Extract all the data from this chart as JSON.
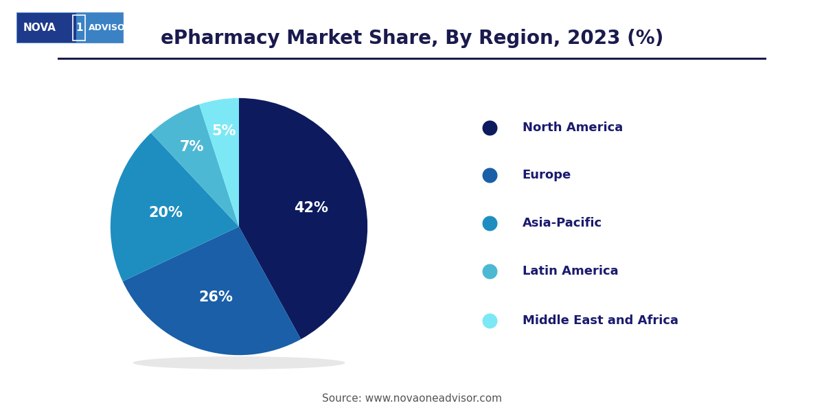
{
  "title": "ePharmacy Market Share, By Region, 2023 (%)",
  "title_color": "#1a1a4e",
  "title_fontsize": 20,
  "background_color": "#ffffff",
  "slices": [
    {
      "label": "North America",
      "value": 42,
      "color": "#0d1b5e",
      "pct_label": "42%"
    },
    {
      "label": "Europe",
      "value": 26,
      "color": "#1a5fa8",
      "pct_label": "26%"
    },
    {
      "label": "Asia-Pacific",
      "value": 20,
      "color": "#1e8ec0",
      "pct_label": "20%"
    },
    {
      "label": "Latin America",
      "value": 7,
      "color": "#4db8d4",
      "pct_label": "7%"
    },
    {
      "label": "Middle East and Africa",
      "value": 5,
      "color": "#7de8f5",
      "pct_label": "5%"
    }
  ],
  "startangle": 90,
  "source_text": "Source: www.novaoneadvisor.com",
  "source_fontsize": 11,
  "source_color": "#555555",
  "pct_label_color": "#ffffff",
  "pct_label_fontsize": 15,
  "legend_label_color": "#1a1a6e",
  "legend_fontsize": 13,
  "line_color": "#1a1a4e",
  "logo_bg_left": "#1e3a8a",
  "logo_bg_right": "#3b82c4"
}
